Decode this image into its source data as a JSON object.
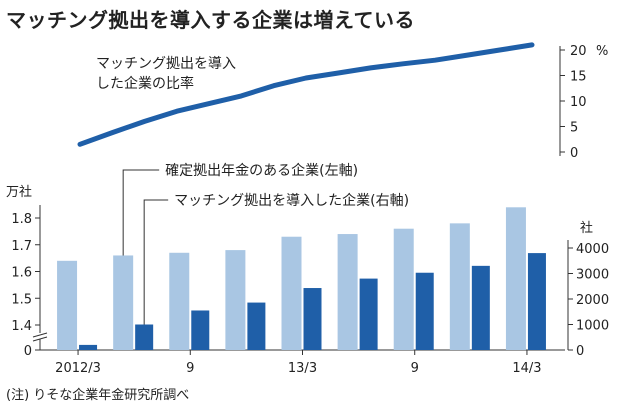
{
  "title": "マッチング拠出を導入する企業は増えている",
  "footnote": "(注) りそな企業年金研究所調べ",
  "chart_data": [
    {
      "type": "line",
      "series": [
        {
          "name": "マッチング拠出を導入した企業の比率",
          "values": [
            1.5,
            3.8,
            6.0,
            8.0,
            9.5,
            11.0,
            13.0,
            14.5,
            15.5,
            16.5,
            17.3,
            18.0,
            19.0,
            20.0,
            21.0
          ]
        }
      ],
      "x_index": [
        0,
        1,
        2,
        3,
        4,
        5,
        6,
        7,
        8,
        9,
        10,
        11,
        12,
        13,
        14
      ],
      "ylim": [
        0,
        20
      ],
      "yticks": [
        0,
        5,
        10,
        15,
        20
      ],
      "y_unit": "%",
      "axis_side": "right",
      "color": "#1f5fa8",
      "line_label": [
        "マッチング拠出を導入",
        "した企業の比率"
      ]
    },
    {
      "type": "bar",
      "categories": [
        "2012/3",
        "",
        "9",
        "",
        "13/3",
        "",
        "9",
        "",
        "14/3"
      ],
      "category_labels": [
        "2012/3",
        "9",
        "13/3",
        "9",
        "14/3"
      ],
      "series": [
        {
          "name": "確定拠出年金のある企業(左軸)",
          "axis": "left",
          "color": "#a9c6e3",
          "values": [
            1.64,
            1.66,
            1.67,
            1.68,
            1.73,
            1.74,
            1.76,
            1.78,
            1.84
          ]
        },
        {
          "name": "マッチング拠出を導入した企業(右軸)",
          "axis": "right",
          "color": "#1f5fa8",
          "values": [
            200,
            1000,
            1550,
            1860,
            2430,
            2800,
            3030,
            3300,
            3800
          ]
        }
      ],
      "left_axis": {
        "unit": "万社",
        "yticks": [
          "0",
          "1.4",
          "1.5",
          "1.6",
          "1.7",
          "1.8"
        ],
        "ylim": [
          1.3,
          1.85
        ],
        "broken": true
      },
      "right_axis": {
        "unit": "社",
        "yticks": [
          "0",
          "1000",
          "2000",
          "3000",
          "4000"
        ],
        "ylim": [
          0,
          4000
        ]
      },
      "legend": [
        "確定拠出年金のある企業(左軸)",
        "マッチング拠出を導入した企業(右軸)"
      ]
    }
  ]
}
